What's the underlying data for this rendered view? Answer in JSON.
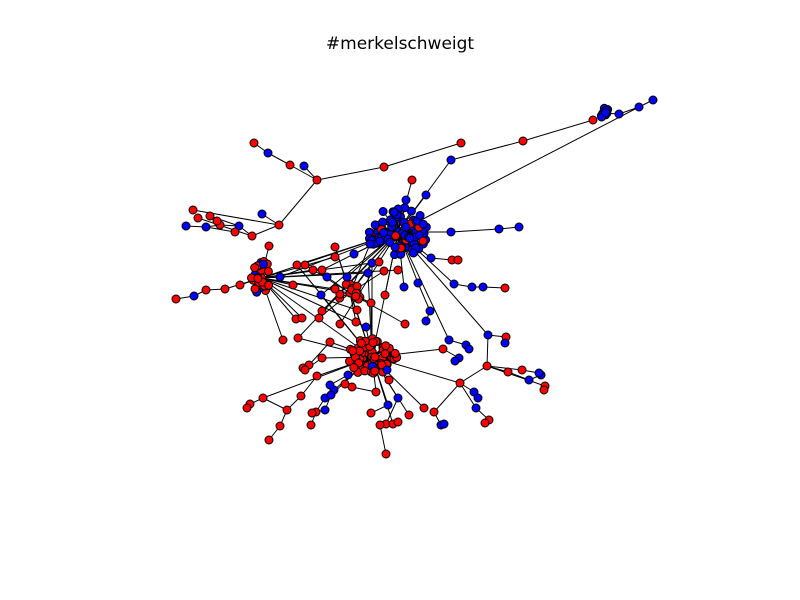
{
  "title": "#merkelschweigt",
  "colors": {
    "red_group": "#ff0000",
    "blue_group": "#0000ff",
    "edge": "#000000",
    "node_outline": "#000000",
    "background": "#ffffff"
  }
}
